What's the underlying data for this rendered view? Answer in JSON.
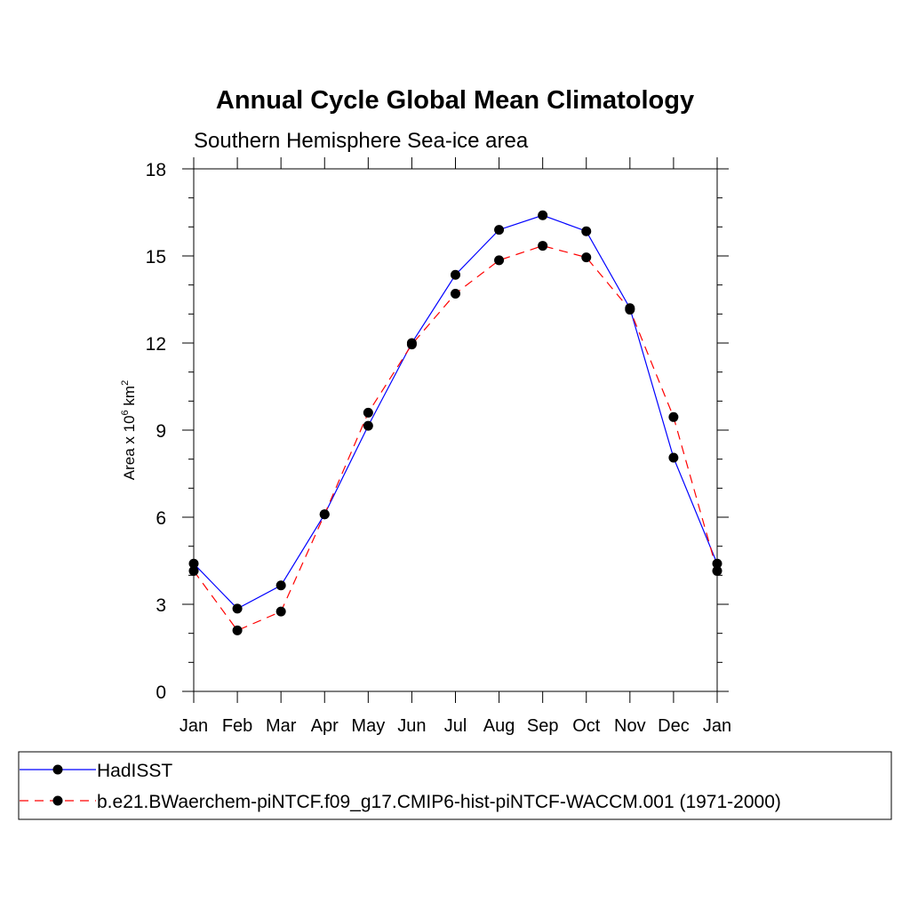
{
  "chart_data": {
    "type": "line",
    "title": "Annual Cycle Global Mean Climatology",
    "subtitle": "Southern Hemisphere Sea-ice area",
    "ylabel": {
      "prefix": "Area x 10",
      "exp1": "6",
      "mid": " km",
      "exp2": "2"
    },
    "xlabel": "",
    "categories": [
      "Jan",
      "Feb",
      "Mar",
      "Apr",
      "May",
      "Jun",
      "Jul",
      "Aug",
      "Sep",
      "Oct",
      "Nov",
      "Dec",
      "Jan"
    ],
    "ylim": [
      0,
      18
    ],
    "yticks": [
      0,
      3,
      6,
      9,
      12,
      15,
      18
    ],
    "grid": false,
    "legend_position": "bottom",
    "series": [
      {
        "name": "HadISST",
        "color": "#0000ff",
        "dash": "solid",
        "marker": "filled-circle",
        "values": [
          4.4,
          2.85,
          3.65,
          6.1,
          9.15,
          12.0,
          14.35,
          15.9,
          16.4,
          15.85,
          13.2,
          8.05,
          4.4
        ]
      },
      {
        "name": "b.e21.BWaerchem-piNTCF.f09_g17.CMIP6-hist-piNTCF-WACCM.001 (1971-2000)",
        "color": "#ff0000",
        "dash": "dashed",
        "marker": "filled-circle",
        "values": [
          4.15,
          2.1,
          2.75,
          6.1,
          9.6,
          11.95,
          13.7,
          14.85,
          15.35,
          14.95,
          13.15,
          9.45,
          4.15
        ]
      }
    ]
  }
}
